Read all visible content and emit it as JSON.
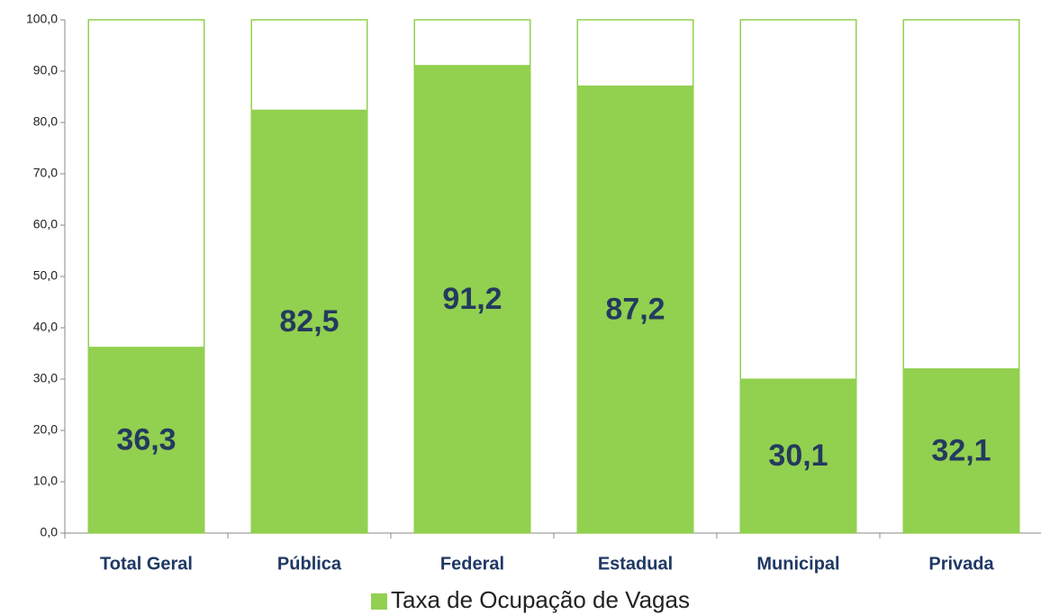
{
  "chart_data": {
    "type": "bar",
    "categories": [
      "Total Geral",
      "Pública",
      "Federal",
      "Estadual",
      "Municipal",
      "Privada"
    ],
    "series": [
      {
        "name": "Taxa de Ocupação de Vagas",
        "color": "#92d050",
        "values": [
          36.3,
          82.5,
          91.2,
          87.2,
          30.1,
          32.1
        ],
        "value_labels": [
          "36,3",
          "82,5",
          "91,2",
          "87,2",
          "30,1",
          "32,1"
        ]
      }
    ],
    "ylim": [
      0,
      100
    ],
    "yticks": [
      {
        "value": 0,
        "label": "0,0"
      },
      {
        "value": 10,
        "label": "10,0"
      },
      {
        "value": 20,
        "label": "20,0"
      },
      {
        "value": 30,
        "label": "30,0"
      },
      {
        "value": 40,
        "label": "40,0"
      },
      {
        "value": 50,
        "label": "50,0"
      },
      {
        "value": 60,
        "label": "60,0"
      },
      {
        "value": 70,
        "label": "70,0"
      },
      {
        "value": 80,
        "label": "80,0"
      },
      {
        "value": 90,
        "label": "90,0"
      },
      {
        "value": 100,
        "label": "100,0"
      }
    ],
    "legend": "bottom"
  }
}
